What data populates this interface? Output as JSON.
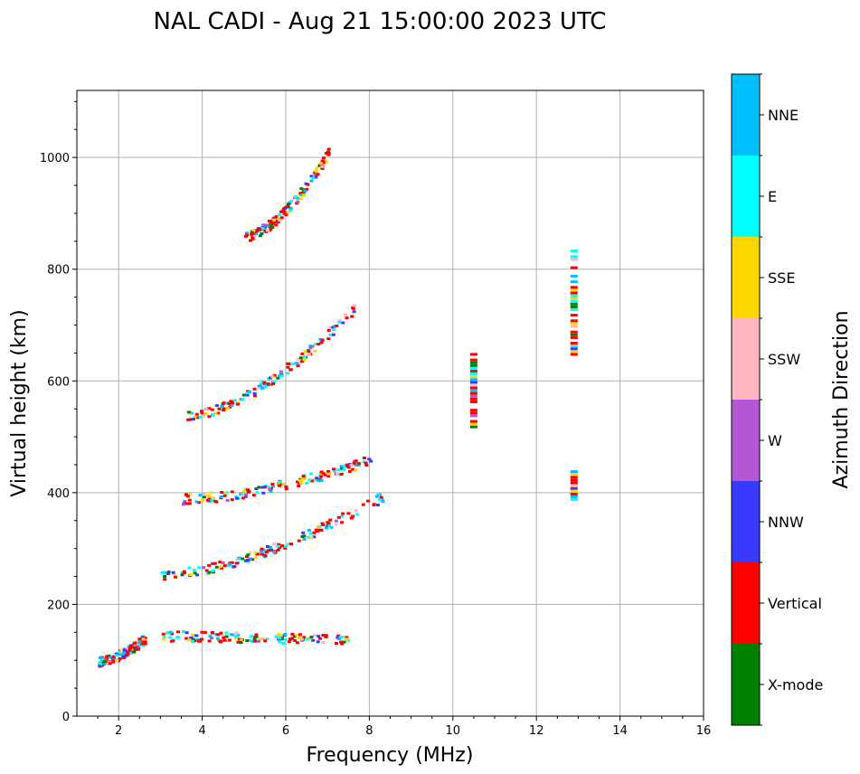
{
  "chart_data": {
    "type": "scatter",
    "title": "NAL CADI - Aug 21 15:00:00 2023 UTC",
    "xlabel": "Frequency (MHz)",
    "ylabel": "Virtual height (km)",
    "xlim": [
      1,
      16
    ],
    "ylim": [
      0,
      1120
    ],
    "xticks": [
      2,
      4,
      6,
      8,
      10,
      12,
      14,
      16
    ],
    "yticks": [
      0,
      200,
      400,
      600,
      800,
      1000
    ],
    "grid": true,
    "colorbar": {
      "label": "Azimuth Direction",
      "categories": [
        {
          "name": "X-mode",
          "color": "#008000"
        },
        {
          "name": "Vertical",
          "color": "#ff0000"
        },
        {
          "name": "NNW",
          "color": "#3a3aff"
        },
        {
          "name": "W",
          "color": "#b257d6"
        },
        {
          "name": "SSW",
          "color": "#ffb6c1"
        },
        {
          "name": "SSE",
          "color": "#ffd700"
        },
        {
          "name": "E",
          "color": "#00ffff"
        },
        {
          "name": "NNE",
          "color": "#00bfff"
        }
      ]
    },
    "traces": [
      {
        "name": "E-layer trace",
        "x0": 1.5,
        "x1": 2.6,
        "h0": 100,
        "h1": 140
      },
      {
        "name": "F1 horizontal trace",
        "x0": 3.0,
        "x1": 7.6,
        "h0": 145,
        "h1": 138
      },
      {
        "name": "F2 trace",
        "x0": 3.0,
        "x1": 8.3,
        "h0": 255,
        "h1": 395
      },
      {
        "name": "F2 second hop trace",
        "x0": 3.5,
        "x1": 8.0,
        "h0": 390,
        "h1": 460
      },
      {
        "name": "F multi-hop trace",
        "x0": 3.6,
        "x1": 7.6,
        "h0": 540,
        "h1": 730
      },
      {
        "name": "F third hop trace",
        "x0": 5.0,
        "x1": 7.0,
        "h0": 860,
        "h1": 1010
      }
    ],
    "columns": [
      {
        "name": "10.5 MHz column",
        "x": 10.5,
        "h0": 520,
        "h1": 650
      },
      {
        "name": "12.9 MHz upper column",
        "x": 12.9,
        "h0": 645,
        "h1": 840
      },
      {
        "name": "12.9 MHz mid column",
        "x": 12.9,
        "h0": 390,
        "h1": 440
      }
    ],
    "notes": "Ionogram echoes colour-coded by azimuth direction"
  }
}
